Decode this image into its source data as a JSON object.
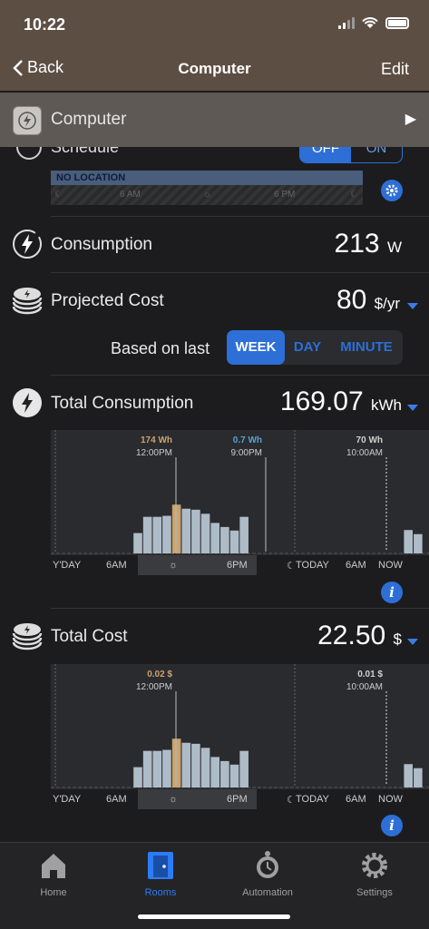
{
  "status": {
    "time": "10:22"
  },
  "nav": {
    "back": "Back",
    "title": "Computer",
    "edit": "Edit"
  },
  "device": {
    "name": "Computer"
  },
  "schedule": {
    "label": "Schedule",
    "toggle_off": "OFF",
    "toggle_on": "ON",
    "location": "NO LOCATION",
    "ticks": [
      "6 AM",
      "6 PM"
    ]
  },
  "consumption": {
    "label": "Consumption",
    "value": "213",
    "unit": "W"
  },
  "projected": {
    "label": "Projected Cost",
    "value": "80",
    "unit": "$/yr"
  },
  "period": {
    "label": "Based on last",
    "options": [
      "WEEK",
      "DAY",
      "MINUTE"
    ],
    "selected": "WEEK"
  },
  "total_consumption": {
    "label": "Total Consumption",
    "value": "169.07",
    "unit": "kWh",
    "markers": [
      {
        "value": "174 Wh",
        "time": "12:00PM",
        "color": "#c9a46e"
      },
      {
        "value": "0.7 Wh",
        "time": "9:00PM",
        "color": "#5aa0d0"
      },
      {
        "value": "70 Wh",
        "time": "10:00AM",
        "color": "#d0d0d0"
      }
    ]
  },
  "total_cost": {
    "label": "Total Cost",
    "value": "22.50",
    "unit": "$",
    "markers": [
      {
        "value": "0.02 $",
        "time": "12:00PM",
        "color": "#c9a46e"
      },
      {
        "value": "0.01 $",
        "time": "10:00AM",
        "color": "#d0d0d0"
      }
    ]
  },
  "axis": {
    "yday": "Y'DAY",
    "am": "6AM",
    "pm": "6PM",
    "today": "TODAY",
    "am2": "6AM",
    "now": "NOW"
  },
  "chart_data": [
    {
      "type": "bar",
      "title": "Total Consumption",
      "series": [
        {
          "values": [
            0,
            0,
            0,
            0,
            0,
            0,
            0,
            0,
            40,
            72,
            72,
            74,
            96,
            88,
            86,
            78,
            60,
            52,
            45,
            72,
            0,
            0,
            0,
            0,
            0,
            0,
            0,
            0,
            0,
            0,
            0,
            0,
            0,
            0,
            0,
            0,
            46,
            38
          ]
        }
      ],
      "highlight_index": 12
    },
    {
      "type": "bar",
      "title": "Total Cost",
      "series": [
        {
          "values": [
            0,
            0,
            0,
            0,
            0,
            0,
            0,
            0,
            40,
            72,
            72,
            74,
            96,
            88,
            86,
            78,
            60,
            52,
            45,
            72,
            0,
            0,
            0,
            0,
            0,
            0,
            0,
            0,
            0,
            0,
            0,
            0,
            0,
            0,
            0,
            0,
            46,
            38
          ]
        }
      ],
      "highlight_index": 12
    }
  ],
  "tabs": [
    {
      "label": "Home",
      "icon": "home-icon"
    },
    {
      "label": "Rooms",
      "icon": "rooms-icon"
    },
    {
      "label": "Automation",
      "icon": "automation-icon"
    },
    {
      "label": "Settings",
      "icon": "settings-icon"
    }
  ],
  "colors": {
    "accent": "#2d6fd6",
    "highlight_bar": "#c9a46e",
    "bar": "#aebcc8"
  }
}
